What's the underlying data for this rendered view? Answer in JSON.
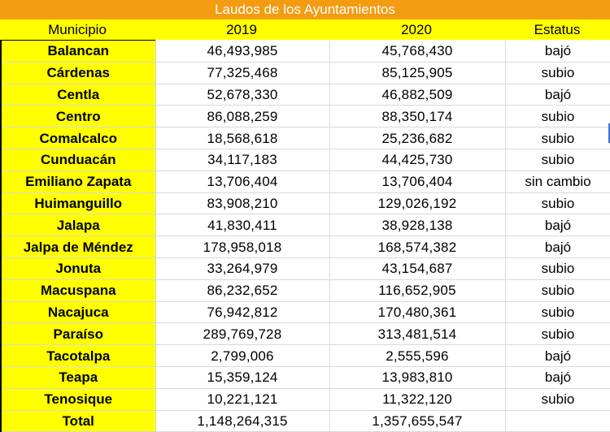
{
  "title": "Laudos de los Ayuntamientos",
  "headers": {
    "municipio": "Municipio",
    "y2019": "2019",
    "y2020": "2020",
    "estatus": "Estatus"
  },
  "rows": [
    {
      "municipio": "Balancan",
      "y2019": "46,493,985",
      "y2020": "45,768,430",
      "estatus": "bajó"
    },
    {
      "municipio": "Cárdenas",
      "y2019": "77,325,468",
      "y2020": "85,125,905",
      "estatus": "subio"
    },
    {
      "municipio": "Centla",
      "y2019": "52,678,330",
      "y2020": "46,882,509",
      "estatus": "bajó"
    },
    {
      "municipio": "Centro",
      "y2019": "86,088,259",
      "y2020": "88,350,174",
      "estatus": "subio"
    },
    {
      "municipio": "Comalcalco",
      "y2019": "18,568,618",
      "y2020": "25,236,682",
      "estatus": "subio"
    },
    {
      "municipio": "Cunduacán",
      "y2019": "34,117,183",
      "y2020": "44,425,730",
      "estatus": "subio"
    },
    {
      "municipio": "Emiliano Zapata",
      "y2019": "13,706,404",
      "y2020": "13,706,404",
      "estatus": "sin cambio"
    },
    {
      "municipio": "Huimanguillo",
      "y2019": "83,908,210",
      "y2020": "129,026,192",
      "estatus": "subio"
    },
    {
      "municipio": "Jalapa",
      "y2019": "41,830,411",
      "y2020": "38,928,138",
      "estatus": "bajó"
    },
    {
      "municipio": "Jalpa de Méndez",
      "y2019": "178,958,018",
      "y2020": "168,574,382",
      "estatus": "bajó"
    },
    {
      "municipio": "Jonuta",
      "y2019": "33,264,979",
      "y2020": "43,154,687",
      "estatus": "subio"
    },
    {
      "municipio": "Macuspana",
      "y2019": "86,232,652",
      "y2020": "116,652,905",
      "estatus": "subio"
    },
    {
      "municipio": "Nacajuca",
      "y2019": "76,942,812",
      "y2020": "170,480,361",
      "estatus": "subio"
    },
    {
      "municipio": "Paraíso",
      "y2019": "289,769,728",
      "y2020": "313,481,514",
      "estatus": "subio"
    },
    {
      "municipio": "Tacotalpa",
      "y2019": "2,799,006",
      "y2020": "2,555,596",
      "estatus": "bajó"
    },
    {
      "municipio": "Teapa",
      "y2019": "15,359,124",
      "y2020": "13,983,810",
      "estatus": "bajó"
    },
    {
      "municipio": "Tenosique",
      "y2019": "10,221,121",
      "y2020": "11,322,120",
      "estatus": "subio"
    },
    {
      "municipio": "Total",
      "y2019": "1,148,264,315",
      "y2020": "1,357,655,547",
      "estatus": ""
    }
  ],
  "colors": {
    "title_bg": "#f39c12",
    "header_bg": "#ffff00",
    "municipio_bg": "#ffff00"
  }
}
